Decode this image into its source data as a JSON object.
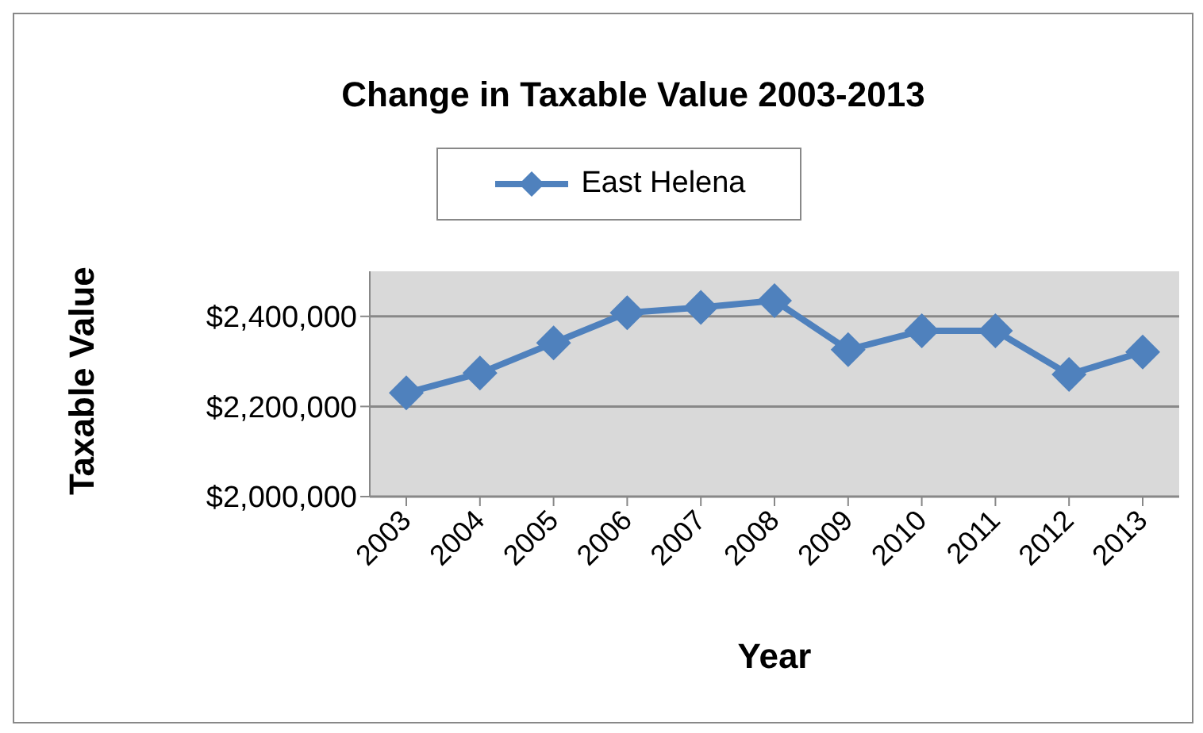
{
  "chart_data": {
    "type": "line",
    "title": "Change in Taxable Value 2003-2013",
    "xlabel": "Year",
    "ylabel": "Taxable Value",
    "categories": [
      "2003",
      "2004",
      "2005",
      "2006",
      "2007",
      "2008",
      "2009",
      "2010",
      "2011",
      "2012",
      "2013"
    ],
    "series": [
      {
        "name": "East Helena",
        "color": "#4f81bd",
        "values": [
          2230000,
          2274000,
          2341000,
          2408000,
          2420000,
          2435000,
          2326000,
          2368000,
          2368000,
          2271000,
          2321000
        ]
      }
    ],
    "ylim": [
      2000000,
      2500000
    ],
    "yticks": [
      {
        "value": 2000000,
        "label": "$2,000,000"
      },
      {
        "value": 2200000,
        "label": "$2,200,000"
      },
      {
        "value": 2400000,
        "label": "$2,400,000"
      }
    ],
    "grid": "y",
    "legend": "top",
    "marker": "diamond",
    "line_style": "solid"
  }
}
